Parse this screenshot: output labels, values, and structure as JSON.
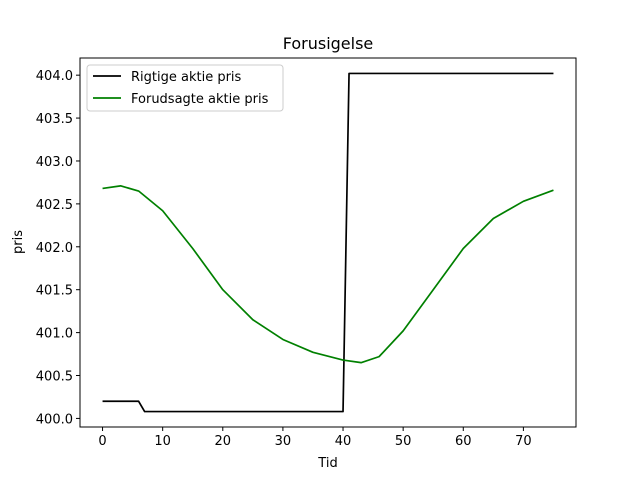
{
  "chart_data": {
    "type": "line",
    "title": "Forusigelse",
    "xlabel": "Tid",
    "ylabel": "pris",
    "xlim": [
      -3.75,
      78.75
    ],
    "ylim": [
      399.9,
      404.2
    ],
    "xticks": [
      0,
      10,
      20,
      30,
      40,
      50,
      60,
      70
    ],
    "yticks": [
      400.0,
      400.5,
      401.0,
      401.5,
      402.0,
      402.5,
      403.0,
      403.5,
      404.0
    ],
    "ytick_labels": [
      "400.0",
      "400.5",
      "401.0",
      "401.5",
      "402.0",
      "402.5",
      "403.0",
      "403.5",
      "404.0"
    ],
    "xtick_labels": [
      "0",
      "10",
      "20",
      "30",
      "40",
      "50",
      "60",
      "70"
    ],
    "grid": false,
    "legend_position": "top-left",
    "series": [
      {
        "name": "Rigtige aktie pris",
        "color": "#000000",
        "x": [
          0,
          6,
          7,
          40,
          41,
          75
        ],
        "y": [
          400.2,
          400.2,
          400.08,
          400.08,
          404.02,
          404.02
        ]
      },
      {
        "name": "Forudsagte aktie pris",
        "color": "#008000",
        "x": [
          0,
          3,
          6,
          10,
          15,
          20,
          25,
          30,
          35,
          40,
          43,
          46,
          50,
          55,
          60,
          65,
          70,
          75
        ],
        "y": [
          402.68,
          402.71,
          402.65,
          402.42,
          401.98,
          401.5,
          401.15,
          400.92,
          400.77,
          400.68,
          400.65,
          400.72,
          401.02,
          401.5,
          401.98,
          402.33,
          402.53,
          402.66
        ]
      }
    ]
  }
}
